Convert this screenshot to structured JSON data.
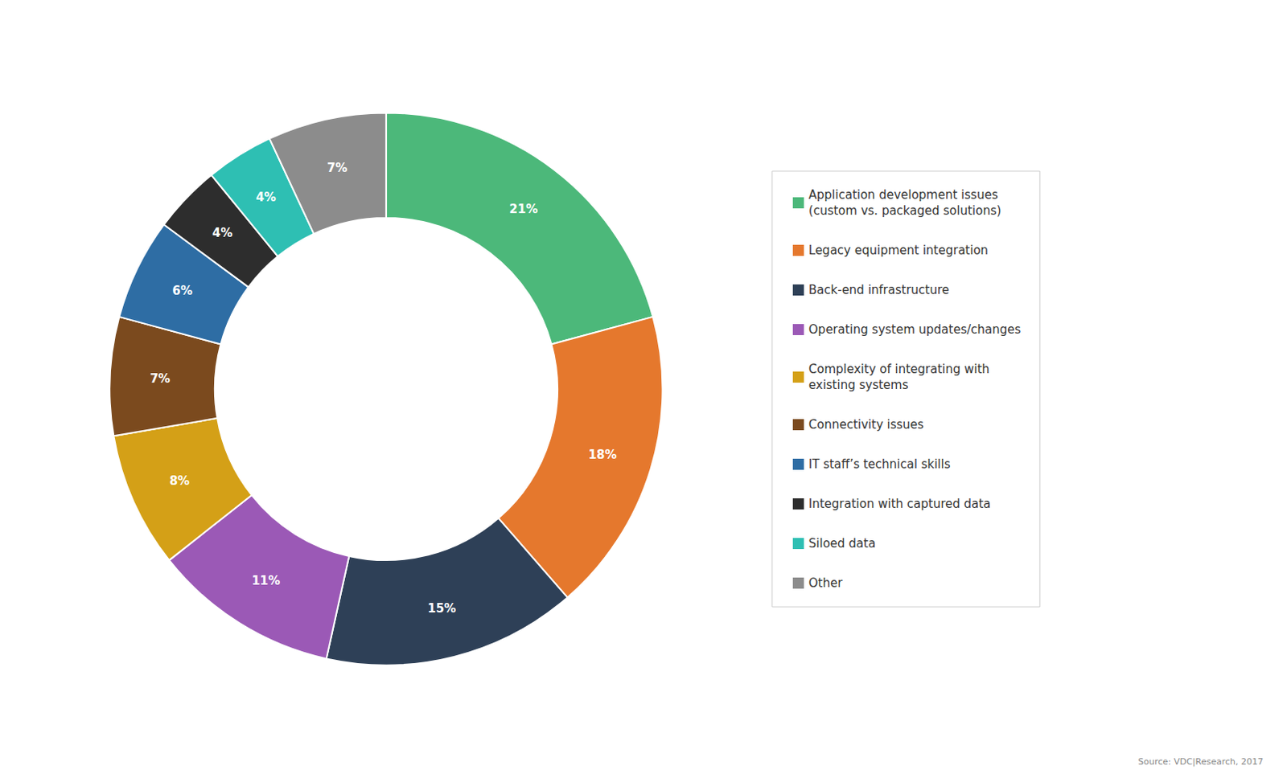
{
  "chart_data": {
    "type": "pie",
    "categories": [
      "Application development issues\n(custom vs. packaged solutions)",
      "Legacy equipment integration",
      "Back-end infrastructure",
      "Operating system updates/changes",
      "Complexity of integrating with\nexisting systems",
      "Connectivity issues",
      "IT staff’s technical skills",
      "Integration with captured data",
      "Siloed data",
      "Other"
    ],
    "values": [
      21,
      18,
      15,
      11,
      8,
      7,
      6,
      4,
      4,
      7
    ],
    "value_labels": [
      "21%",
      "18%",
      "15%",
      "11%",
      "8%",
      "7%",
      "6%",
      "4%",
      "4%",
      "7%"
    ],
    "data_labels": true,
    "colors": [
      "#4cb87a",
      "#e5782d",
      "#2e4057",
      "#9b59b6",
      "#d4a017",
      "#7b4a1e",
      "#2e6da4",
      "#2d2d2d",
      "#2ebfb3",
      "#8c8c8c"
    ],
    "legend": "right",
    "annotations": [
      "Source: VDC|Research, 2017"
    ]
  }
}
